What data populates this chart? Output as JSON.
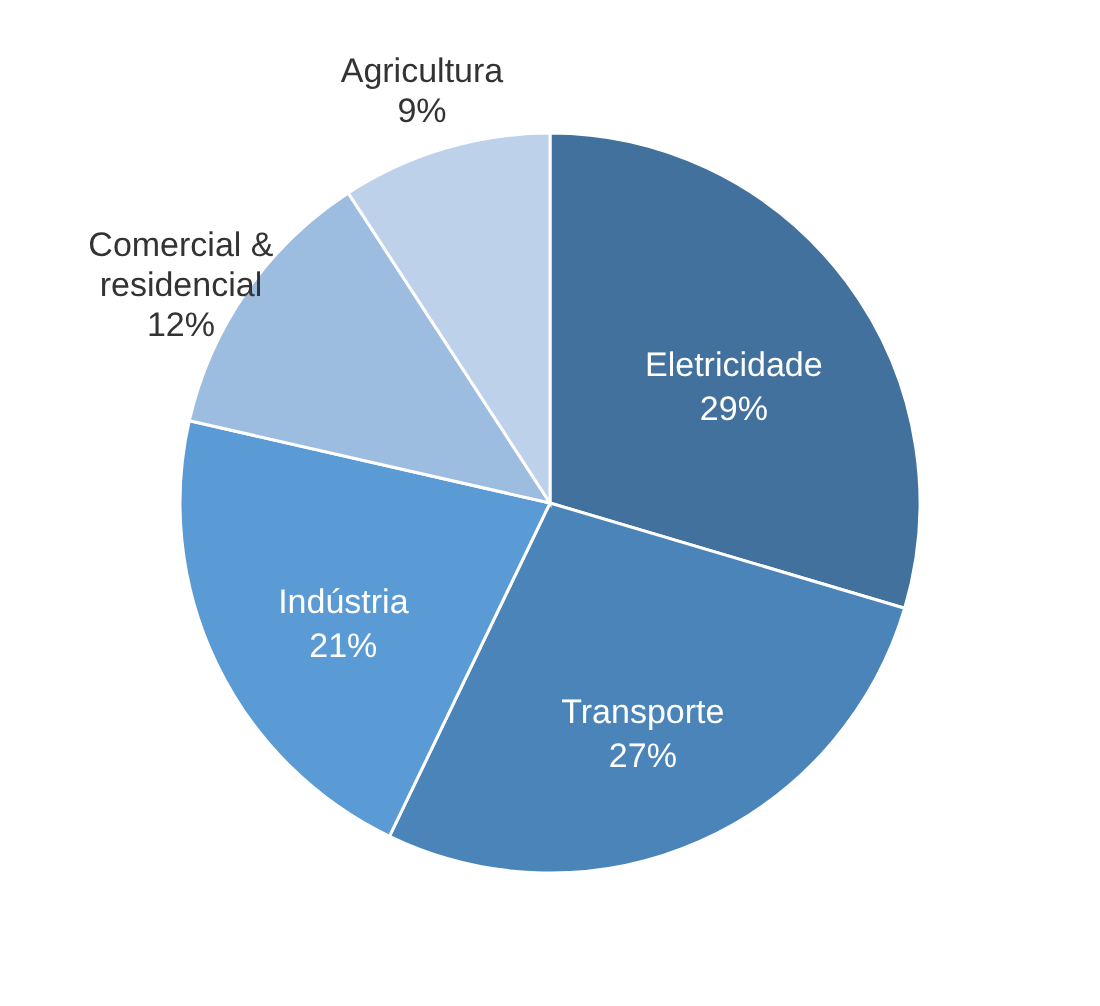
{
  "chart_data": {
    "type": "pie",
    "categories": [
      "Eletricidade",
      "Transporte",
      "Indústria",
      "Comercial & residencial",
      "Agricultura"
    ],
    "values": [
      29,
      27,
      21,
      12,
      9
    ],
    "value_labels": [
      "29%",
      "27%",
      "21%",
      "12%",
      "9%"
    ],
    "colors": [
      "#41719c",
      "#4a84b9",
      "#5b9bd5",
      "#9dbde0",
      "#bdd1ea"
    ]
  }
}
